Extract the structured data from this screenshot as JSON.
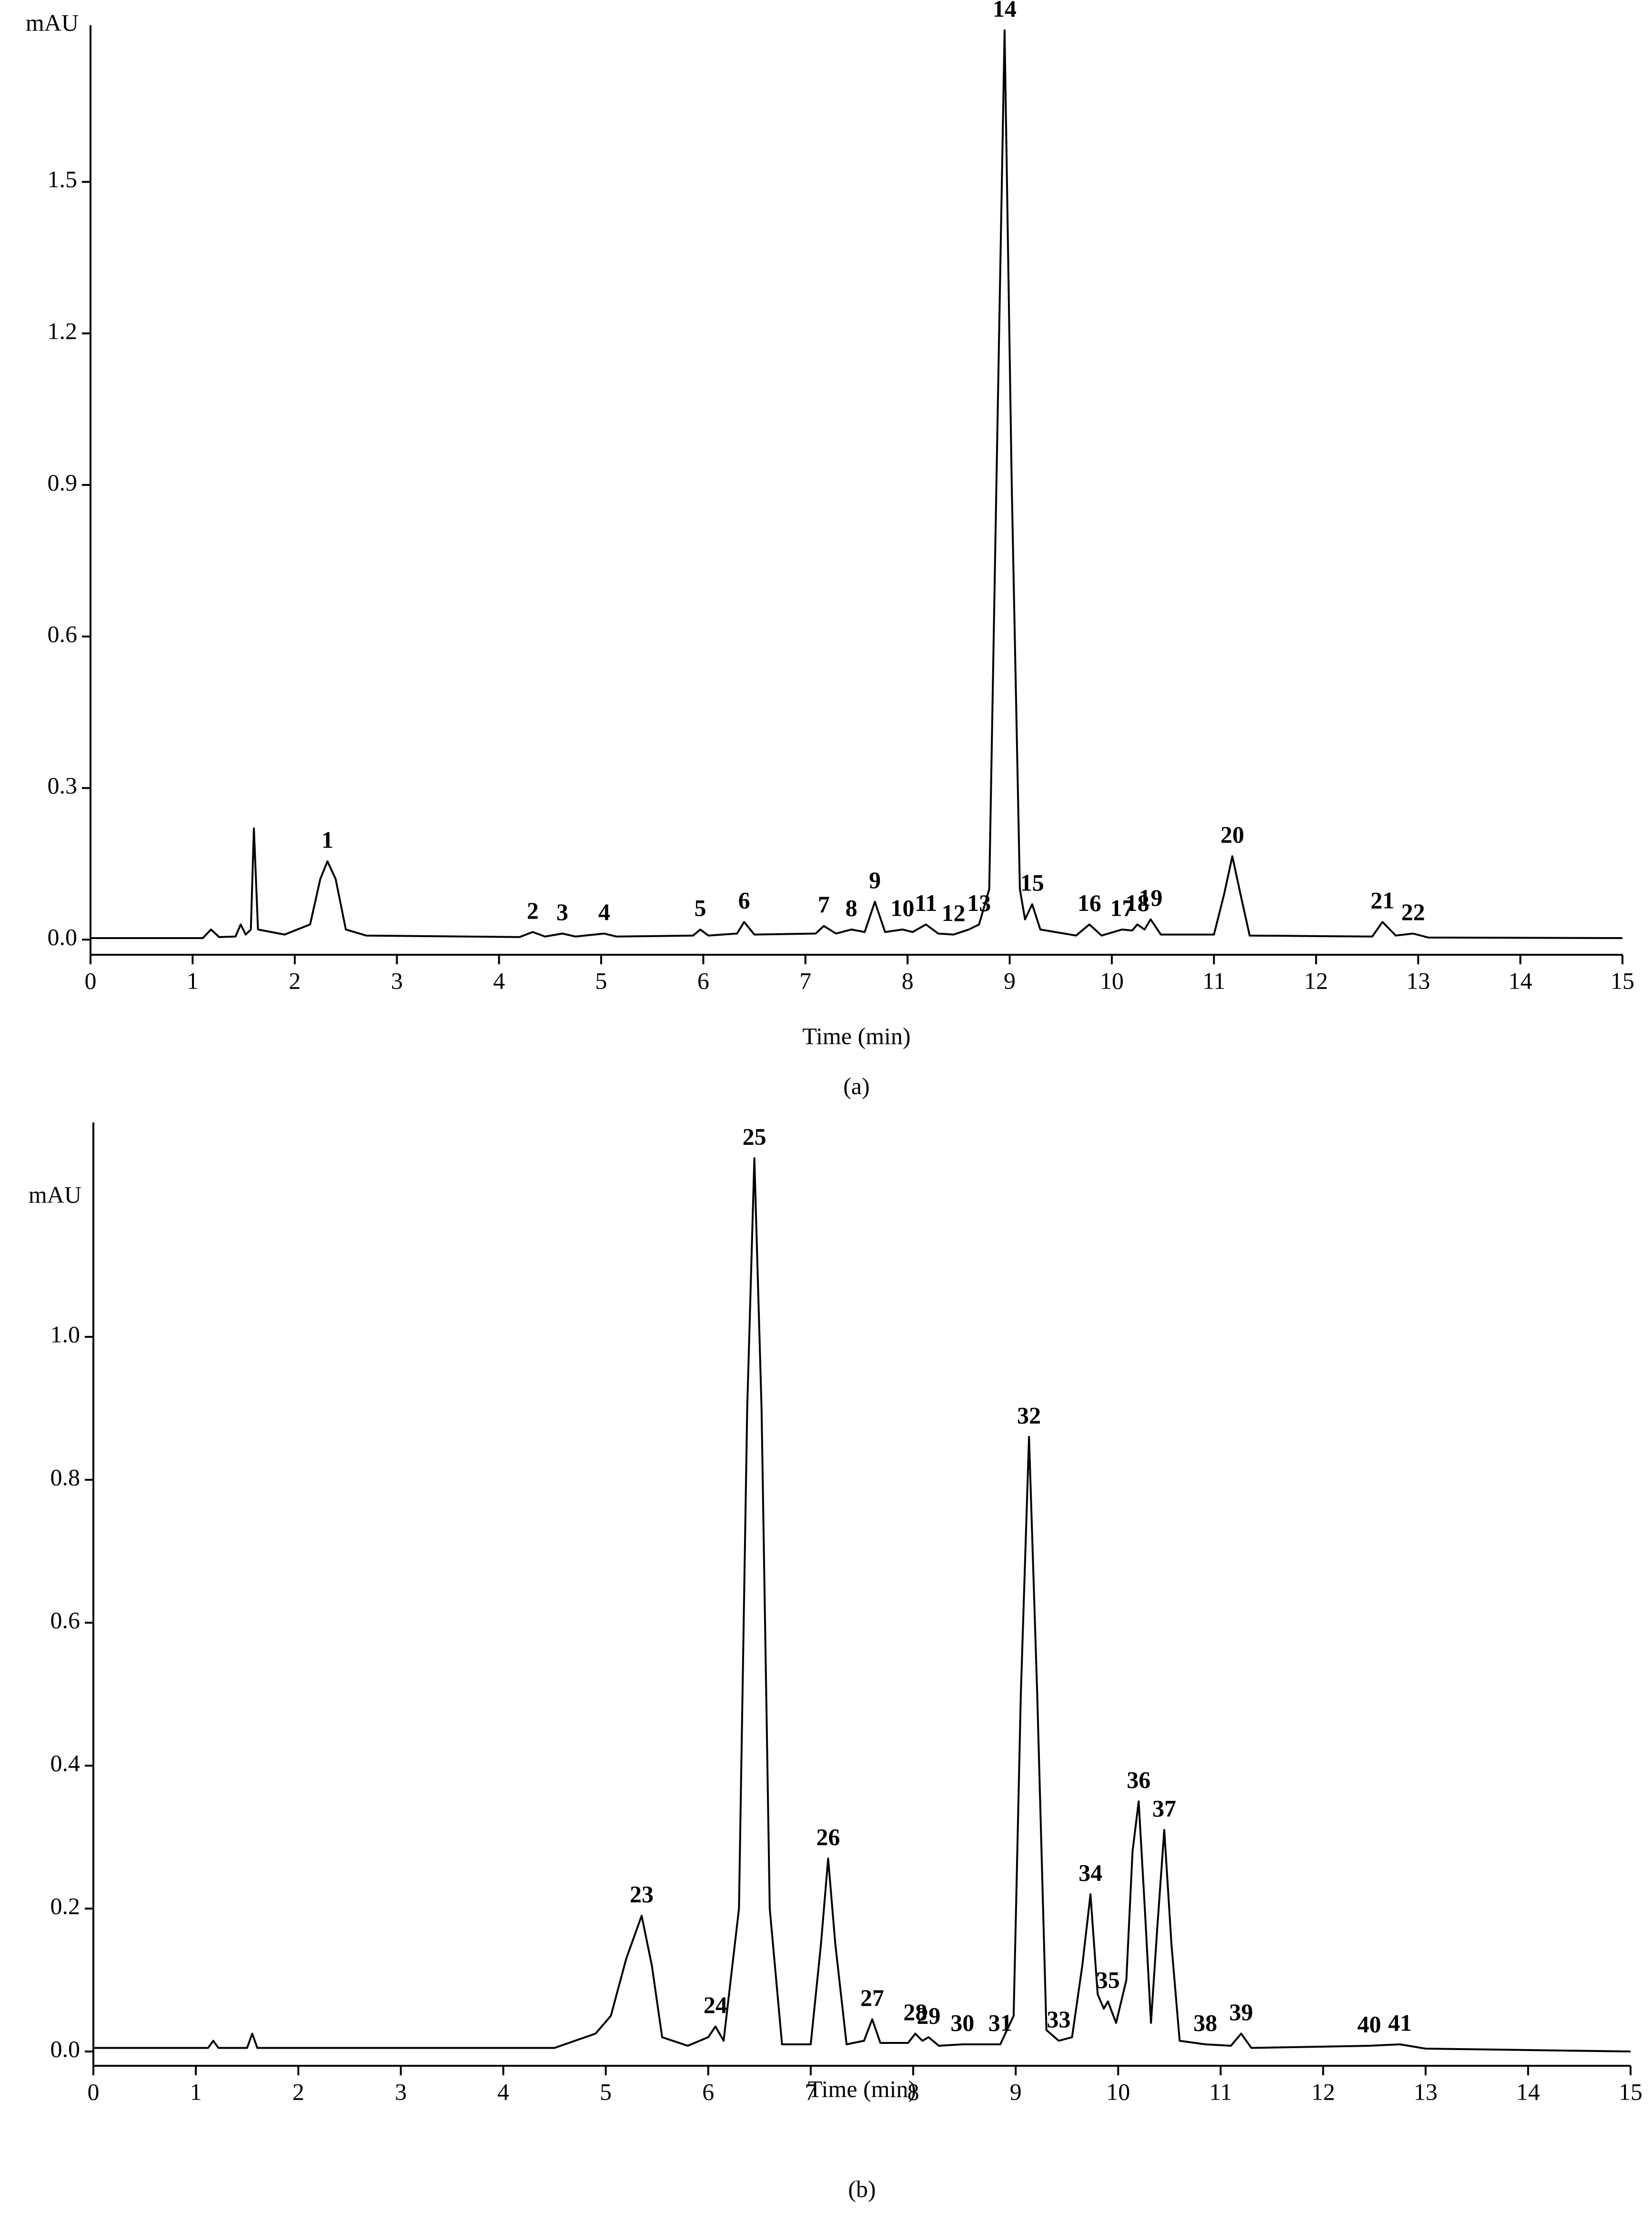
{
  "chart_data": [
    {
      "type": "line",
      "caption": "(a)",
      "ylabel": "mAU",
      "xlabel": "Time (min)",
      "color": "#000000",
      "xlim": [
        0,
        15
      ],
      "xticks": [
        0,
        1,
        2,
        3,
        4,
        5,
        6,
        7,
        8,
        9,
        10,
        11,
        12,
        13,
        14,
        15
      ],
      "ylim": [
        -0.03,
        1.81
      ],
      "yticks": [
        {
          "value": 0,
          "label": "0.0"
        },
        0.3,
        0.6,
        0.9,
        1.2,
        1.5
      ],
      "x": [
        0,
        1.1,
        1.18,
        1.26,
        1.42,
        1.47,
        1.52,
        1.57,
        1.6,
        1.64,
        1.9,
        2.15,
        2.25,
        2.32,
        2.4,
        2.5,
        2.7,
        4.2,
        4.33,
        4.45,
        4.62,
        4.75,
        5.03,
        5.15,
        5.9,
        5.97,
        6.05,
        6.33,
        6.4,
        6.5,
        7.1,
        7.18,
        7.3,
        7.45,
        7.58,
        7.68,
        7.78,
        7.95,
        8.05,
        8.18,
        8.3,
        8.45,
        8.6,
        8.7,
        8.8,
        8.87,
        8.95,
        9.02,
        9.1,
        9.15,
        9.22,
        9.3,
        9.65,
        9.78,
        9.9,
        10.1,
        10.2,
        10.25,
        10.32,
        10.38,
        10.48,
        11,
        11.1,
        11.18,
        11.26,
        11.35,
        12.55,
        12.65,
        12.78,
        12.95,
        13.1,
        15
      ],
      "values": [
        0.003,
        0.003,
        0.02,
        0.005,
        0.006,
        0.03,
        0.01,
        0.02,
        0.22,
        0.02,
        0.01,
        0.03,
        0.12,
        0.155,
        0.12,
        0.02,
        0.008,
        0.005,
        0.015,
        0.006,
        0.012,
        0.006,
        0.012,
        0.006,
        0.008,
        0.02,
        0.008,
        0.012,
        0.035,
        0.01,
        0.012,
        0.027,
        0.012,
        0.02,
        0.015,
        0.075,
        0.015,
        0.02,
        0.015,
        0.03,
        0.012,
        0.01,
        0.02,
        0.03,
        0.1,
        0.9,
        1.8,
        0.9,
        0.1,
        0.04,
        0.07,
        0.02,
        0.008,
        0.03,
        0.008,
        0.02,
        0.018,
        0.03,
        0.02,
        0.04,
        0.01,
        0.01,
        0.09,
        0.165,
        0.09,
        0.008,
        0.006,
        0.035,
        0.008,
        0.012,
        0.004,
        0.003
      ],
      "peaks": [
        {
          "label": "1",
          "x": 2.32,
          "y": 0.155
        },
        {
          "label": "2",
          "x": 4.33,
          "y": 0.015
        },
        {
          "label": "3",
          "x": 4.62,
          "y": 0.012
        },
        {
          "label": "4",
          "x": 5.03,
          "y": 0.012
        },
        {
          "label": "5",
          "x": 5.97,
          "y": 0.02
        },
        {
          "label": "6",
          "x": 6.4,
          "y": 0.035
        },
        {
          "label": "7",
          "x": 7.18,
          "y": 0.027
        },
        {
          "label": "8",
          "x": 7.45,
          "y": 0.02
        },
        {
          "label": "9",
          "x": 7.68,
          "y": 0.075
        },
        {
          "label": "10",
          "x": 7.95,
          "y": 0.02
        },
        {
          "label": "11",
          "x": 8.18,
          "y": 0.03
        },
        {
          "label": "12",
          "x": 8.45,
          "y": 0.01
        },
        {
          "label": "13",
          "x": 8.7,
          "y": 0.03
        },
        {
          "label": "14",
          "x": 8.95,
          "y": 1.8
        },
        {
          "label": "15",
          "x": 9.22,
          "y": 0.07
        },
        {
          "label": "16",
          "x": 9.78,
          "y": 0.03
        },
        {
          "label": "17",
          "x": 10.1,
          "y": 0.02
        },
        {
          "label": "18",
          "x": 10.25,
          "y": 0.03
        },
        {
          "label": "19",
          "x": 10.38,
          "y": 0.04
        },
        {
          "label": "20",
          "x": 11.18,
          "y": 0.165
        },
        {
          "label": "21",
          "x": 12.65,
          "y": 0.035
        },
        {
          "label": "22",
          "x": 12.95,
          "y": 0.012
        }
      ]
    },
    {
      "type": "line",
      "caption": "(b)",
      "ylabel": "mAU",
      "xlabel": "Time (min)",
      "color": "#000000",
      "xlim": [
        0,
        15
      ],
      "xticks": [
        0,
        1,
        2,
        3,
        4,
        5,
        6,
        7,
        8,
        9,
        10,
        11,
        12,
        13,
        14,
        15
      ],
      "ylim": [
        -0.02,
        1.3
      ],
      "yticks": [
        {
          "value": 0,
          "label": "0.0"
        },
        0.2,
        0.4,
        0.6,
        0.8,
        {
          "value": 1,
          "label": "1.0"
        }
      ],
      "x": [
        0,
        1.12,
        1.17,
        1.22,
        1.5,
        1.55,
        1.6,
        4.5,
        4.7,
        4.9,
        5.05,
        5.2,
        5.35,
        5.45,
        5.55,
        5.8,
        6,
        6.07,
        6.15,
        6.3,
        6.38,
        6.45,
        6.52,
        6.6,
        6.72,
        7,
        7.1,
        7.17,
        7.24,
        7.35,
        7.52,
        7.6,
        7.68,
        7.95,
        8.02,
        8.09,
        8.15,
        8.25,
        8.48,
        8.85,
        8.98,
        9.05,
        9.13,
        9.21,
        9.3,
        9.42,
        9.55,
        9.65,
        9.73,
        9.8,
        9.86,
        9.9,
        9.98,
        10.08,
        10.14,
        10.2,
        10.26,
        10.32,
        10.38,
        10.45,
        10.52,
        10.6,
        10.85,
        11.1,
        11.2,
        11.3,
        12.45,
        12.75,
        13,
        15
      ],
      "values": [
        0.005,
        0.005,
        0.015,
        0.005,
        0.005,
        0.025,
        0.005,
        0.005,
        0.015,
        0.025,
        0.05,
        0.13,
        0.19,
        0.12,
        0.02,
        0.008,
        0.02,
        0.035,
        0.015,
        0.2,
        0.9,
        1.25,
        0.9,
        0.2,
        0.01,
        0.01,
        0.15,
        0.27,
        0.15,
        0.01,
        0.015,
        0.045,
        0.012,
        0.012,
        0.025,
        0.015,
        0.02,
        0.008,
        0.01,
        0.01,
        0.05,
        0.5,
        0.86,
        0.5,
        0.03,
        0.015,
        0.02,
        0.12,
        0.22,
        0.08,
        0.06,
        0.07,
        0.04,
        0.1,
        0.28,
        0.35,
        0.2,
        0.04,
        0.17,
        0.31,
        0.15,
        0.015,
        0.01,
        0.008,
        0.025,
        0.005,
        0.008,
        0.01,
        0.004,
        0
      ],
      "peaks": [
        {
          "label": "23",
          "x": 5.35,
          "y": 0.19
        },
        {
          "label": "24",
          "x": 6.07,
          "y": 0.035
        },
        {
          "label": "25",
          "x": 6.45,
          "y": 1.25
        },
        {
          "label": "26",
          "x": 7.17,
          "y": 0.27
        },
        {
          "label": "27",
          "x": 7.6,
          "y": 0.045
        },
        {
          "label": "28",
          "x": 8.02,
          "y": 0.025
        },
        {
          "label": "29",
          "x": 8.15,
          "y": 0.02
        },
        {
          "label": "30",
          "x": 8.48,
          "y": 0.01
        },
        {
          "label": "31",
          "x": 8.85,
          "y": 0.01
        },
        {
          "label": "32",
          "x": 9.13,
          "y": 0.86
        },
        {
          "label": "33",
          "x": 9.42,
          "y": 0.015
        },
        {
          "label": "34",
          "x": 9.73,
          "y": 0.22
        },
        {
          "label": "35",
          "x": 9.9,
          "y": 0.07
        },
        {
          "label": "36",
          "x": 10.2,
          "y": 0.35
        },
        {
          "label": "37",
          "x": 10.45,
          "y": 0.31
        },
        {
          "label": "38",
          "x": 10.85,
          "y": 0.01
        },
        {
          "label": "39",
          "x": 11.2,
          "y": 0.025
        },
        {
          "label": "40",
          "x": 12.45,
          "y": 0.008
        },
        {
          "label": "41",
          "x": 12.75,
          "y": 0.01
        }
      ]
    }
  ]
}
